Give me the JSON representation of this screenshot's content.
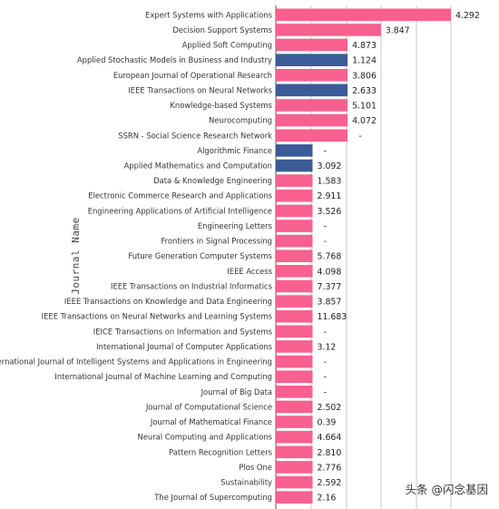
{
  "chart_data": {
    "type": "bar",
    "orientation": "horizontal",
    "ylabel": "Journal Name",
    "grid": true,
    "colors": {
      "bar_pink": "#f7608f",
      "bar_blue": "#3b5b98"
    },
    "bars": [
      {
        "category": "Expert Systems with Applications",
        "label": "4.292",
        "color": "pink",
        "length": 1.0
      },
      {
        "category": "Decision Support Systems",
        "label": "3.847",
        "color": "pink",
        "length": 0.6
      },
      {
        "category": "Applied Soft Computing",
        "label": "4.873",
        "color": "pink",
        "length": 0.41
      },
      {
        "category": "Applied Stochastic Models in Business and Industry",
        "label": "1.124",
        "color": "blue",
        "length": 0.41
      },
      {
        "category": "European Journal of Operational Research",
        "label": "3.806",
        "color": "pink",
        "length": 0.41
      },
      {
        "category": "IEEE Transactions on Neural Networks",
        "label": "2.633",
        "color": "blue",
        "length": 0.41
      },
      {
        "category": "Knowledge-based Systems",
        "label": "5.101",
        "color": "pink",
        "length": 0.41
      },
      {
        "category": "Neurocomputing",
        "label": "4.072",
        "color": "pink",
        "length": 0.41
      },
      {
        "category": "SSRN - Social Science Research Network",
        "label": "-",
        "color": "pink",
        "length": 0.41
      },
      {
        "category": "Algorithmic Finance",
        "label": "-",
        "color": "blue",
        "length": 0.21
      },
      {
        "category": "Applied Mathematics and Computation",
        "label": "3.092",
        "color": "blue",
        "length": 0.21
      },
      {
        "category": "Data & Knowledge Engineering",
        "label": "1.583",
        "color": "pink",
        "length": 0.21
      },
      {
        "category": "Electronic Commerce Research and Applications",
        "label": "2.911",
        "color": "pink",
        "length": 0.21
      },
      {
        "category": "Engineering Applications of Artificial Intelligence",
        "label": "3.526",
        "color": "pink",
        "length": 0.21
      },
      {
        "category": "Engineering Letters",
        "label": "-",
        "color": "pink",
        "length": 0.21
      },
      {
        "category": "Frontiers in Signal Processing",
        "label": "-",
        "color": "pink",
        "length": 0.21
      },
      {
        "category": "Future Generation Computer Systems",
        "label": "5.768",
        "color": "pink",
        "length": 0.21
      },
      {
        "category": "IEEE Access",
        "label": "4.098",
        "color": "pink",
        "length": 0.21
      },
      {
        "category": "IEEE Transactions on Industrial Informatics",
        "label": "7.377",
        "color": "pink",
        "length": 0.21
      },
      {
        "category": "IEEE Transactions on Knowledge and Data Engineering",
        "label": "3.857",
        "color": "pink",
        "length": 0.21
      },
      {
        "category": "IEEE Transactions on Neural Networks and Learning Systems",
        "label": "11.683",
        "color": "pink",
        "length": 0.21
      },
      {
        "category": "IEICE Transactions on Information and Systems",
        "label": "-",
        "color": "pink",
        "length": 0.21
      },
      {
        "category": "International Journal of Computer Applications",
        "label": "3.12",
        "color": "pink",
        "length": 0.21
      },
      {
        "category": "International Journal of Intelligent Systems and Applications in Engineering",
        "label": "-",
        "color": "pink",
        "length": 0.21
      },
      {
        "category": "International Journal of Machine Learning and Computing",
        "label": "-",
        "color": "pink",
        "length": 0.21
      },
      {
        "category": "Journal of Big Data",
        "label": "-",
        "color": "pink",
        "length": 0.21
      },
      {
        "category": "Journal of Computational Science",
        "label": "2.502",
        "color": "pink",
        "length": 0.21
      },
      {
        "category": "Journal of Mathematical Finance",
        "label": "0.39",
        "color": "pink",
        "length": 0.21
      },
      {
        "category": "Neural Computing and Applications",
        "label": "4.664",
        "color": "pink",
        "length": 0.21
      },
      {
        "category": "Pattern Recognition Letters",
        "label": "2.810",
        "color": "pink",
        "length": 0.21
      },
      {
        "category": "Plos One",
        "label": "2.776",
        "color": "pink",
        "length": 0.21
      },
      {
        "category": "Sustainability",
        "label": "2.592",
        "color": "pink",
        "length": 0.21
      },
      {
        "category": "The Journal of Supercomputing",
        "label": "2.16",
        "color": "pink",
        "length": 0.21
      }
    ]
  },
  "watermark": "头条 @闪念基因"
}
